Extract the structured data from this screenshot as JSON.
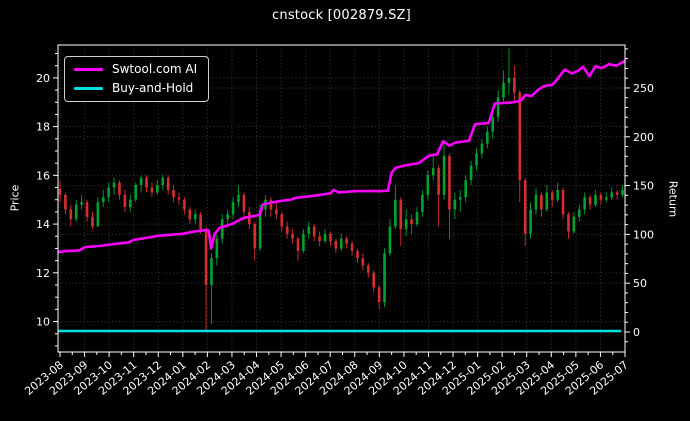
{
  "window": {
    "title": "cnstock [002879.SZ]"
  },
  "chart_data": {
    "type": "candlestick",
    "title": "cnstock [002879.SZ]",
    "ylabel_left": "Price",
    "ylabel_right": "Return",
    "x_tick_labels": [
      "2023-08",
      "2023-09",
      "2023-10",
      "2023-11",
      "2023-12",
      "2024-01",
      "2024-02",
      "2024-03",
      "2024-04",
      "2024-05",
      "2024-06",
      "2024-07",
      "2024-08",
      "2024-09",
      "2024-10",
      "2024-11",
      "2024-12",
      "2025-01",
      "2025-02",
      "2025-03",
      "2025-04",
      "2025-05",
      "2025-06",
      "2025-07"
    ],
    "y_ticks_left": [
      10,
      12,
      14,
      16,
      18,
      20
    ],
    "y_ticks_right": [
      0,
      50,
      100,
      150,
      200,
      250
    ],
    "price_lim": [
      8.75,
      21.35
    ],
    "return_lim": [
      -20.5,
      294.0
    ],
    "x_lim_months": [
      -0.081,
      23.0
    ],
    "grid": true,
    "legend_position": "upper-left",
    "legend": {
      "entries": [
        {
          "label": "Swtool.com AI",
          "color": "#ff00ff"
        },
        {
          "label": "Buy-and-Hold",
          "color": "#00e0e0"
        }
      ]
    },
    "colors": {
      "background": "#000000",
      "text": "#ffffff",
      "grid": "#3c3c3c",
      "spine": "#ffffff",
      "candle_up": "#00a32e",
      "candle_down": "#d62f2f",
      "ai_line": "#ff00ff",
      "buyhold_line": "#00e0e0"
    },
    "candles_weekly_ohlc": [
      [
        15.45,
        15.8,
        14.9,
        15.2
      ],
      [
        15.2,
        15.3,
        14.4,
        14.6
      ],
      [
        14.6,
        14.8,
        13.9,
        14.2
      ],
      [
        14.2,
        15.0,
        14.1,
        14.8
      ],
      [
        14.8,
        15.2,
        14.6,
        14.9
      ],
      [
        14.9,
        15.0,
        14.1,
        14.3
      ],
      [
        14.3,
        14.5,
        13.8,
        13.9
      ],
      [
        13.9,
        15.1,
        13.9,
        14.9
      ],
      [
        14.9,
        15.4,
        14.7,
        15.1
      ],
      [
        15.1,
        15.7,
        14.9,
        15.5
      ],
      [
        15.5,
        15.9,
        15.2,
        15.7
      ],
      [
        15.7,
        15.8,
        15.0,
        15.2
      ],
      [
        15.2,
        15.4,
        14.5,
        14.7
      ],
      [
        14.7,
        15.2,
        14.5,
        15.0
      ],
      [
        15.0,
        15.7,
        14.9,
        15.6
      ],
      [
        15.6,
        16.0,
        15.3,
        15.9
      ],
      [
        15.9,
        16.0,
        15.3,
        15.5
      ],
      [
        15.5,
        15.7,
        15.1,
        15.3
      ],
      [
        15.3,
        15.8,
        15.2,
        15.6
      ],
      [
        15.6,
        16.05,
        15.4,
        15.9
      ],
      [
        15.9,
        16.0,
        15.2,
        15.4
      ],
      [
        15.4,
        15.6,
        14.9,
        15.1
      ],
      [
        15.1,
        15.3,
        14.8,
        15.0
      ],
      [
        15.0,
        15.1,
        14.4,
        14.6
      ],
      [
        14.6,
        14.7,
        14.0,
        14.2
      ],
      [
        14.2,
        14.6,
        14.0,
        14.4
      ],
      [
        14.4,
        14.5,
        13.6,
        13.8
      ],
      [
        13.8,
        13.9,
        9.6,
        11.5
      ],
      [
        11.5,
        12.8,
        9.9,
        12.6
      ],
      [
        12.6,
        13.6,
        12.3,
        13.4
      ],
      [
        13.4,
        14.4,
        13.2,
        14.2
      ],
      [
        14.2,
        14.6,
        13.9,
        14.4
      ],
      [
        14.4,
        15.1,
        14.2,
        14.9
      ],
      [
        14.9,
        15.6,
        14.7,
        15.2
      ],
      [
        15.2,
        15.3,
        14.3,
        14.5
      ],
      [
        14.5,
        14.7,
        13.8,
        14.0
      ],
      [
        14.0,
        14.1,
        12.5,
        13.0
      ],
      [
        13.0,
        14.8,
        12.9,
        14.6
      ],
      [
        14.6,
        15.2,
        14.3,
        15.0
      ],
      [
        15.0,
        15.1,
        14.3,
        14.6
      ],
      [
        14.6,
        14.9,
        14.2,
        14.4
      ],
      [
        14.4,
        14.5,
        13.7,
        13.9
      ],
      [
        13.9,
        14.1,
        13.4,
        13.6
      ],
      [
        13.6,
        13.8,
        13.2,
        13.4
      ],
      [
        13.4,
        13.5,
        12.5,
        12.9
      ],
      [
        12.9,
        13.8,
        12.8,
        13.6
      ],
      [
        13.6,
        14.1,
        13.4,
        13.9
      ],
      [
        13.9,
        14.0,
        13.3,
        13.5
      ],
      [
        13.5,
        13.7,
        13.1,
        13.3
      ],
      [
        13.3,
        13.8,
        13.2,
        13.6
      ],
      [
        13.6,
        13.7,
        13.1,
        13.3
      ],
      [
        13.3,
        13.4,
        12.8,
        13.0
      ],
      [
        13.0,
        13.6,
        12.9,
        13.4
      ],
      [
        13.4,
        13.5,
        13.0,
        13.2
      ],
      [
        13.2,
        13.3,
        12.7,
        12.9
      ],
      [
        12.9,
        13.0,
        12.4,
        12.6
      ],
      [
        12.6,
        12.8,
        12.1,
        12.3
      ],
      [
        12.3,
        12.4,
        11.8,
        12.0
      ],
      [
        12.0,
        12.1,
        11.2,
        11.4
      ],
      [
        11.4,
        11.5,
        10.5,
        10.8
      ],
      [
        10.8,
        13.0,
        10.6,
        12.8
      ],
      [
        12.8,
        14.2,
        12.7,
        13.9
      ],
      [
        13.9,
        15.6,
        13.8,
        15.0
      ],
      [
        15.0,
        15.1,
        13.1,
        13.8
      ],
      [
        13.8,
        14.6,
        13.5,
        14.2
      ],
      [
        14.2,
        14.4,
        13.6,
        14.0
      ],
      [
        14.0,
        14.7,
        13.9,
        14.5
      ],
      [
        14.5,
        15.4,
        14.3,
        15.2
      ],
      [
        15.2,
        16.2,
        15.0,
        16.0
      ],
      [
        16.0,
        16.8,
        15.8,
        16.3
      ],
      [
        16.3,
        16.4,
        13.9,
        15.2
      ],
      [
        15.2,
        17.4,
        15.0,
        16.8
      ],
      [
        16.8,
        16.9,
        13.4,
        14.6
      ],
      [
        14.6,
        15.3,
        14.2,
        15.0
      ],
      [
        15.0,
        15.4,
        14.5,
        15.1
      ],
      [
        15.1,
        16.0,
        14.9,
        15.8
      ],
      [
        15.8,
        16.6,
        15.6,
        16.4
      ],
      [
        16.4,
        17.1,
        16.2,
        16.9
      ],
      [
        16.9,
        17.5,
        16.7,
        17.3
      ],
      [
        17.3,
        18.0,
        17.1,
        17.8
      ],
      [
        17.8,
        18.6,
        17.5,
        18.4
      ],
      [
        18.4,
        19.5,
        18.2,
        19.2
      ],
      [
        19.2,
        20.3,
        19.0,
        19.8
      ],
      [
        19.8,
        21.2,
        19.3,
        20.0
      ],
      [
        20.0,
        20.5,
        19.0,
        19.4
      ],
      [
        19.4,
        19.5,
        14.9,
        15.8
      ],
      [
        15.8,
        15.9,
        13.1,
        13.6
      ],
      [
        13.6,
        14.9,
        13.4,
        14.6
      ],
      [
        14.6,
        15.5,
        14.4,
        15.2
      ],
      [
        15.2,
        15.3,
        14.3,
        14.6
      ],
      [
        14.6,
        15.6,
        14.5,
        15.3
      ],
      [
        15.3,
        15.4,
        14.7,
        15.0
      ],
      [
        15.0,
        15.7,
        14.9,
        15.4
      ],
      [
        15.4,
        15.5,
        14.2,
        14.4
      ],
      [
        14.4,
        14.5,
        13.4,
        13.7
      ],
      [
        13.7,
        14.5,
        13.6,
        14.3
      ],
      [
        14.3,
        14.8,
        14.1,
        14.6
      ],
      [
        14.6,
        15.3,
        14.4,
        15.1
      ],
      [
        15.1,
        15.2,
        14.6,
        14.8
      ],
      [
        14.8,
        15.4,
        14.7,
        15.2
      ],
      [
        15.2,
        15.3,
        14.8,
        15.0
      ],
      [
        15.0,
        15.3,
        14.9,
        15.1
      ],
      [
        15.1,
        15.5,
        15.0,
        15.3
      ],
      [
        15.3,
        15.4,
        15.0,
        15.2
      ],
      [
        15.2,
        15.6,
        15.1,
        15.4
      ]
    ],
    "series": [
      {
        "name": "Swtool.com AI",
        "axis": "price",
        "color": "#ff00ff",
        "points": [
          [
            -0.08,
            12.85
          ],
          [
            0.3,
            12.9
          ],
          [
            0.8,
            12.92
          ],
          [
            1.0,
            13.05
          ],
          [
            1.6,
            13.1
          ],
          [
            2.2,
            13.18
          ],
          [
            2.8,
            13.25
          ],
          [
            3.0,
            13.35
          ],
          [
            3.6,
            13.45
          ],
          [
            4.0,
            13.52
          ],
          [
            4.6,
            13.57
          ],
          [
            5.0,
            13.6
          ],
          [
            5.5,
            13.7
          ],
          [
            5.9,
            13.75
          ],
          [
            6.05,
            13.74
          ],
          [
            6.15,
            13.0
          ],
          [
            6.3,
            13.6
          ],
          [
            6.5,
            13.85
          ],
          [
            7.0,
            14.0
          ],
          [
            7.4,
            14.22
          ],
          [
            7.6,
            14.28
          ],
          [
            8.0,
            14.35
          ],
          [
            8.15,
            14.4
          ],
          [
            8.25,
            14.8
          ],
          [
            8.6,
            14.88
          ],
          [
            9.0,
            14.95
          ],
          [
            9.4,
            15.0
          ],
          [
            9.6,
            15.08
          ],
          [
            10.0,
            15.12
          ],
          [
            10.6,
            15.2
          ],
          [
            11.0,
            15.26
          ],
          [
            11.15,
            15.4
          ],
          [
            11.35,
            15.3
          ],
          [
            12.0,
            15.35
          ],
          [
            12.6,
            15.36
          ],
          [
            13.0,
            15.35
          ],
          [
            13.35,
            15.37
          ],
          [
            13.5,
            16.1
          ],
          [
            13.65,
            16.3
          ],
          [
            14.0,
            16.4
          ],
          [
            14.6,
            16.5
          ],
          [
            15.0,
            16.8
          ],
          [
            15.35,
            16.87
          ],
          [
            15.6,
            17.4
          ],
          [
            15.85,
            17.22
          ],
          [
            16.1,
            17.35
          ],
          [
            16.65,
            17.42
          ],
          [
            16.9,
            18.1
          ],
          [
            17.45,
            18.15
          ],
          [
            17.7,
            18.95
          ],
          [
            18.3,
            18.98
          ],
          [
            18.75,
            19.05
          ],
          [
            18.95,
            19.3
          ],
          [
            19.2,
            19.25
          ],
          [
            19.45,
            19.5
          ],
          [
            19.7,
            19.66
          ],
          [
            20.05,
            19.72
          ],
          [
            20.25,
            19.95
          ],
          [
            20.55,
            20.34
          ],
          [
            20.85,
            20.18
          ],
          [
            21.1,
            20.3
          ],
          [
            21.3,
            20.45
          ],
          [
            21.55,
            20.07
          ],
          [
            21.8,
            20.48
          ],
          [
            22.05,
            20.4
          ],
          [
            22.35,
            20.56
          ],
          [
            22.65,
            20.5
          ],
          [
            23.0,
            20.7
          ]
        ]
      },
      {
        "name": "Buy-and-Hold",
        "axis": "return",
        "color": "#00e0e0",
        "points": [
          [
            -0.08,
            1
          ],
          [
            22.85,
            1
          ]
        ]
      }
    ]
  }
}
